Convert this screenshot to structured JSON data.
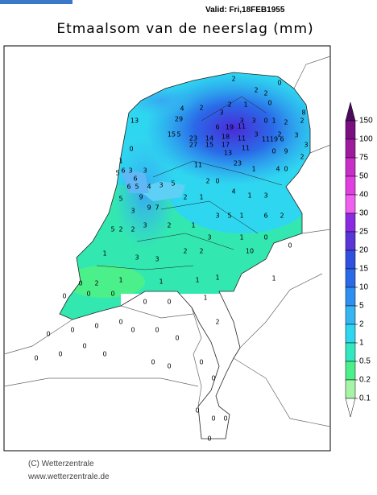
{
  "header": {
    "valid": "Valid: Fri,18FEB1955",
    "title": "Etmaalsom van de neerslag (mm)"
  },
  "colorbar": {
    "levels": [
      150,
      100,
      75,
      50,
      40,
      30,
      25,
      20,
      15,
      10,
      5,
      2,
      1,
      0.5,
      0.2,
      0.1
    ],
    "colors": [
      "#4a0b5c",
      "#7a0f80",
      "#a01aa0",
      "#c82ec8",
      "#e040e0",
      "#f060f0",
      "#8a2be2",
      "#5a36d8",
      "#3050e0",
      "#2a6ae8",
      "#2f8ff0",
      "#36b5f2",
      "#2fd6f0",
      "#33e8c0",
      "#4cf08a",
      "#a6f5a6",
      "#ffffff"
    ]
  },
  "stations": [
    2,
    0,
    2,
    2,
    2,
    1,
    0,
    4,
    2,
    3,
    29,
    3,
    3,
    0,
    1,
    2,
    2,
    8,
    15,
    5,
    6,
    19,
    11,
    14,
    18,
    11,
    3,
    2,
    3,
    27,
    23,
    15,
    17,
    11,
    11,
    19,
    6,
    3,
    13,
    0,
    9,
    2,
    11,
    23,
    1,
    4,
    0,
    13,
    0,
    1,
    6,
    5,
    3,
    6,
    3,
    6,
    5,
    4,
    3,
    5,
    2,
    0,
    4,
    1,
    3,
    5,
    9,
    2,
    1,
    3,
    9,
    7,
    3,
    5,
    1,
    6,
    2,
    5,
    2,
    2,
    3,
    2,
    1,
    3,
    1,
    0,
    1,
    3,
    3,
    2,
    2,
    10,
    0,
    0,
    2,
    1,
    1,
    1,
    1,
    1,
    0,
    0,
    0,
    0,
    0,
    1,
    2,
    0,
    0,
    0,
    0,
    0,
    0,
    0,
    0,
    0,
    0,
    0,
    0,
    0,
    0,
    0,
    0,
    0,
    0,
    0
  ],
  "footer": {
    "copyright": "(C) Wetterzentrale",
    "url": "www.wetterzentrale.de"
  }
}
